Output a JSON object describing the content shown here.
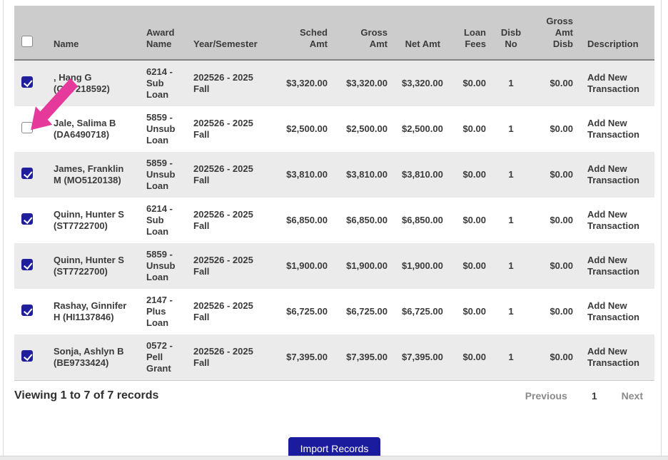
{
  "table": {
    "select_all_checked": false,
    "columns": [
      {
        "key": "select",
        "label": "",
        "align": "left"
      },
      {
        "key": "name",
        "label": "Name",
        "align": "left"
      },
      {
        "key": "award",
        "label": "Award\nName",
        "align": "left"
      },
      {
        "key": "year",
        "label": "Year/Semester",
        "align": "left"
      },
      {
        "key": "sched",
        "label": "Sched\nAmt",
        "align": "right"
      },
      {
        "key": "gross",
        "label": "Gross\nAmt",
        "align": "right"
      },
      {
        "key": "net",
        "label": "Net Amt",
        "align": "right"
      },
      {
        "key": "fees",
        "label": "Loan\nFees",
        "align": "right"
      },
      {
        "key": "disb_no",
        "label": "Disb\nNo",
        "align": "center"
      },
      {
        "key": "gross_disb",
        "label": "Gross\nAmt\nDisb",
        "align": "right"
      },
      {
        "key": "description",
        "label": "Description",
        "align": "left"
      }
    ],
    "rows": [
      {
        "checked": true,
        "name": ", Hang G (GA7218592)",
        "award": "6214 - Sub Loan",
        "year": "202526 - 2025 Fall",
        "sched": "$3,320.00",
        "gross": "$3,320.00",
        "net": "$3,320.00",
        "fees": "$0.00",
        "disb_no": "1",
        "gross_disb": "$0.00",
        "description": "Add New Transaction"
      },
      {
        "checked": false,
        "name": "Jale, Salima B (DA6490718)",
        "award": "5859 - Unsub Loan",
        "year": "202526 - 2025 Fall",
        "sched": "$2,500.00",
        "gross": "$2,500.00",
        "net": "$2,500.00",
        "fees": "$0.00",
        "disb_no": "1",
        "gross_disb": "$0.00",
        "description": "Add New Transaction"
      },
      {
        "checked": true,
        "name": "James, Franklin M (MO5120138)",
        "award": "5859 - Unsub Loan",
        "year": "202526 - 2025 Fall",
        "sched": "$3,810.00",
        "gross": "$3,810.00",
        "net": "$3,810.00",
        "fees": "$0.00",
        "disb_no": "1",
        "gross_disb": "$0.00",
        "description": "Add New Transaction"
      },
      {
        "checked": true,
        "name": "Quinn, Hunter S (ST7722700)",
        "award": "6214 - Sub Loan",
        "year": "202526 - 2025 Fall",
        "sched": "$6,850.00",
        "gross": "$6,850.00",
        "net": "$6,850.00",
        "fees": "$0.00",
        "disb_no": "1",
        "gross_disb": "$0.00",
        "description": "Add New Transaction"
      },
      {
        "checked": true,
        "name": "Quinn, Hunter S (ST7722700)",
        "award": "5859 - Unsub Loan",
        "year": "202526 - 2025 Fall",
        "sched": "$1,900.00",
        "gross": "$1,900.00",
        "net": "$1,900.00",
        "fees": "$0.00",
        "disb_no": "1",
        "gross_disb": "$0.00",
        "description": "Add New Transaction"
      },
      {
        "checked": true,
        "name": "Rashay, Ginnifer H (HI1137846)",
        "award": "2147 - Plus Loan",
        "year": "202526 - 2025 Fall",
        "sched": "$6,725.00",
        "gross": "$6,725.00",
        "net": "$6,725.00",
        "fees": "$0.00",
        "disb_no": "1",
        "gross_disb": "$0.00",
        "description": "Add New Transaction"
      },
      {
        "checked": true,
        "name": "Sonja, Ashlyn B (BE9733424)",
        "award": "0572 - Pell Grant",
        "year": "202526 - 2025 Fall",
        "sched": "$7,395.00",
        "gross": "$7,395.00",
        "net": "$7,395.00",
        "fees": "$0.00",
        "disb_no": "1",
        "gross_disb": "$0.00",
        "description": "Add New Transaction"
      }
    ]
  },
  "footer": {
    "viewing_text": "Viewing 1 to 7 of 7 records",
    "pagination": {
      "previous": "Previous",
      "page": "1",
      "next": "Next"
    }
  },
  "actions": {
    "import_label": "Import Records"
  },
  "annotation": {
    "arrow_color": "#e5399b"
  },
  "colors": {
    "header_bg": "#cccccc",
    "alt_row_bg": "#ebebeb",
    "checkbox_checked": "#1f1f9e",
    "button_bg": "#1b1b9e",
    "text": "#3b3b3b",
    "pagination_muted": "#8a8a8a"
  }
}
